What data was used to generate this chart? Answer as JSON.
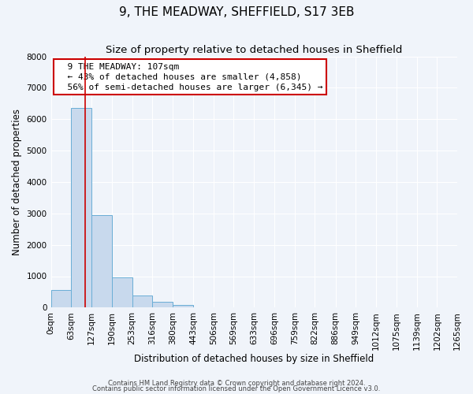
{
  "title": "9, THE MEADWAY, SHEFFIELD, S17 3EB",
  "subtitle": "Size of property relative to detached houses in Sheffield",
  "xlabel": "Distribution of detached houses by size in Sheffield",
  "ylabel": "Number of detached properties",
  "bin_edges": [
    0,
    63,
    127,
    190,
    253,
    316,
    380,
    443,
    506,
    569,
    633,
    696,
    759,
    822,
    886,
    949,
    1012,
    1075,
    1139,
    1202,
    1265
  ],
  "bar_heights": [
    550,
    6350,
    2950,
    950,
    380,
    175,
    90,
    10,
    5,
    2,
    1,
    1,
    1,
    0,
    0,
    0,
    0,
    0,
    0,
    0
  ],
  "bar_color": "#c8d9ed",
  "bar_edge_color": "#6aaed6",
  "red_line_x": 107,
  "annotation_title": "9 THE MEADWAY: 107sqm",
  "annotation_line1": "← 43% of detached houses are smaller (4,858)",
  "annotation_line2": "56% of semi-detached houses are larger (6,345) →",
  "annotation_box_color": "#ffffff",
  "annotation_box_edge": "#cc0000",
  "red_line_color": "#cc0000",
  "ylim": [
    0,
    8000
  ],
  "yticks": [
    0,
    1000,
    2000,
    3000,
    4000,
    5000,
    6000,
    7000,
    8000
  ],
  "title_fontsize": 11,
  "subtitle_fontsize": 9.5,
  "axis_label_fontsize": 8.5,
  "tick_fontsize": 7.5,
  "annotation_fontsize": 8,
  "footer_line1": "Contains HM Land Registry data © Crown copyright and database right 2024.",
  "footer_line2": "Contains public sector information licensed under the Open Government Licence v3.0.",
  "bg_color": "#f0f4fa",
  "grid_color": "#ffffff"
}
